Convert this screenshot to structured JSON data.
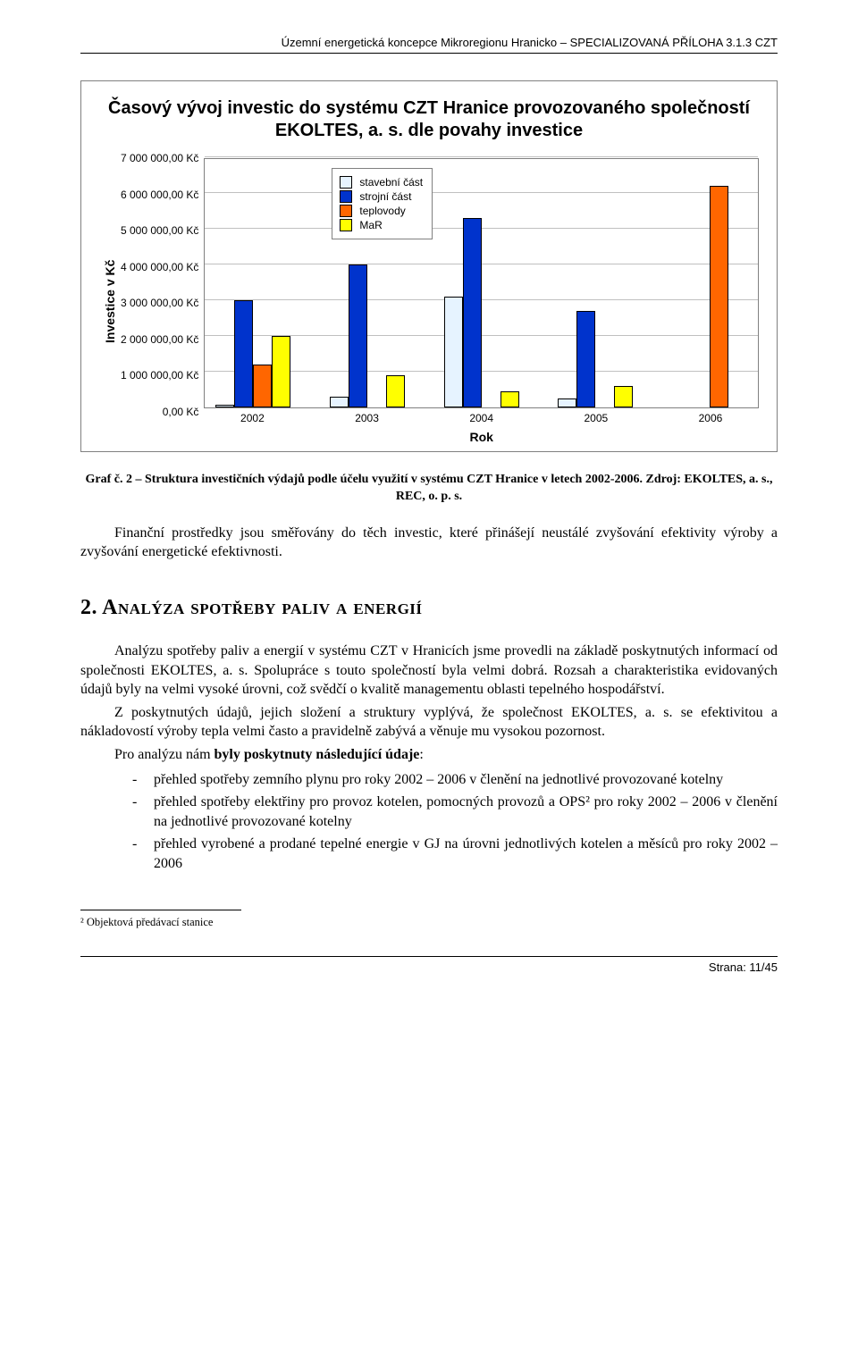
{
  "header": "Územní energetická koncepce Mikroregionu Hranicko – SPECIALIZOVANÁ PŘÍLOHA 3.1.3 CZT",
  "chart": {
    "title": "Časový vývoj investic do systému CZT Hranice provozovaného společností EKOLTES, a. s. dle povahy investice",
    "y_label": "Investice v Kč",
    "x_label": "Rok",
    "ymax": 7000000,
    "y_ticks": [
      "7 000 000,00 Kč",
      "6 000 000,00 Kč",
      "5 000 000,00 Kč",
      "4 000 000,00 Kč",
      "3 000 000,00 Kč",
      "2 000 000,00 Kč",
      "1 000 000,00 Kč",
      "0,00 Kč"
    ],
    "x_ticks": [
      "2002",
      "2003",
      "2004",
      "2005",
      "2006"
    ],
    "legend": [
      {
        "key": "stavebni",
        "label": "stavební část",
        "color": "#e6f3ff"
      },
      {
        "key": "strojni",
        "label": "strojní část",
        "color": "#0033cc"
      },
      {
        "key": "teplovody",
        "label": "teplovody",
        "color": "#ff6600"
      },
      {
        "key": "mar",
        "label": "MaR",
        "color": "#ffff00"
      }
    ],
    "series_order": [
      "stavebni",
      "strojni",
      "teplovody",
      "mar"
    ],
    "data": {
      "2002": {
        "stavebni": 80000,
        "strojni": 3000000,
        "teplovody": 1200000,
        "mar": 2000000
      },
      "2003": {
        "stavebni": 300000,
        "strojni": 4000000,
        "teplovody": 0,
        "mar": 900000
      },
      "2004": {
        "stavebni": 3100000,
        "strojni": 5300000,
        "teplovody": 0,
        "mar": 450000
      },
      "2005": {
        "stavebni": 250000,
        "strojni": 2700000,
        "teplovody": 0,
        "mar": 600000
      },
      "2006": {
        "stavebni": 0,
        "strojni": 0,
        "teplovody": 6200000,
        "mar": 0
      }
    },
    "colors": {
      "stavebni": "#e6f3ff",
      "strojni": "#0033cc",
      "teplovody": "#ff6600",
      "mar": "#ffff00"
    },
    "grid_color": "#c0c0c0",
    "border_color": "#808080"
  },
  "caption": "Graf č. 2 – Struktura investičních výdajů podle účelu využití v systému CZT Hranice v letech 2002-2006. Zdroj: EKOLTES, a. s., REC, o. p. s.",
  "para1": "Finanční prostředky jsou směřovány do těch investic, které přinášejí neustálé zvyšování efektivity výroby a zvyšování energetické efektivnosti.",
  "section_heading": "2. Analýza spotřeby paliv a energií",
  "para2": "Analýzu spotřeby paliv a energií v systému CZT v Hranicích jsme provedli na základě poskytnutých informací od společnosti EKOLTES, a. s. Spolupráce s touto společností byla velmi dobrá. Rozsah a charakteristika evidovaných údajů byly na velmi vysoké úrovni, což svědčí o kvalitě managementu oblasti tepelného hospodářství.",
  "para3": "Z poskytnutých údajů, jejich složení a struktury vyplývá, že společnost EKOLTES, a. s. se efektivitou a nákladovostí výroby tepla velmi často a pravidelně zabývá a věnuje mu vysokou pozornost.",
  "para4_prefix": "Pro analýzu nám ",
  "para4_bold": "byly poskytnuty následující údaje",
  "para4_suffix": ":",
  "bullets": [
    "přehled spotřeby zemního plynu pro roky 2002 – 2006 v členění na jednotlivé provozované kotelny",
    "přehled spotřeby elektřiny pro provoz kotelen, pomocných provozů a OPS² pro roky 2002 – 2006 v členění na jednotlivé provozované kotelny",
    "přehled vyrobené a prodané tepelné energie v GJ na úrovni jednotlivých kotelen a měsíců pro roky 2002 – 2006"
  ],
  "footnote": "² Objektová předávací stanice",
  "footer": "Strana: 11/45"
}
